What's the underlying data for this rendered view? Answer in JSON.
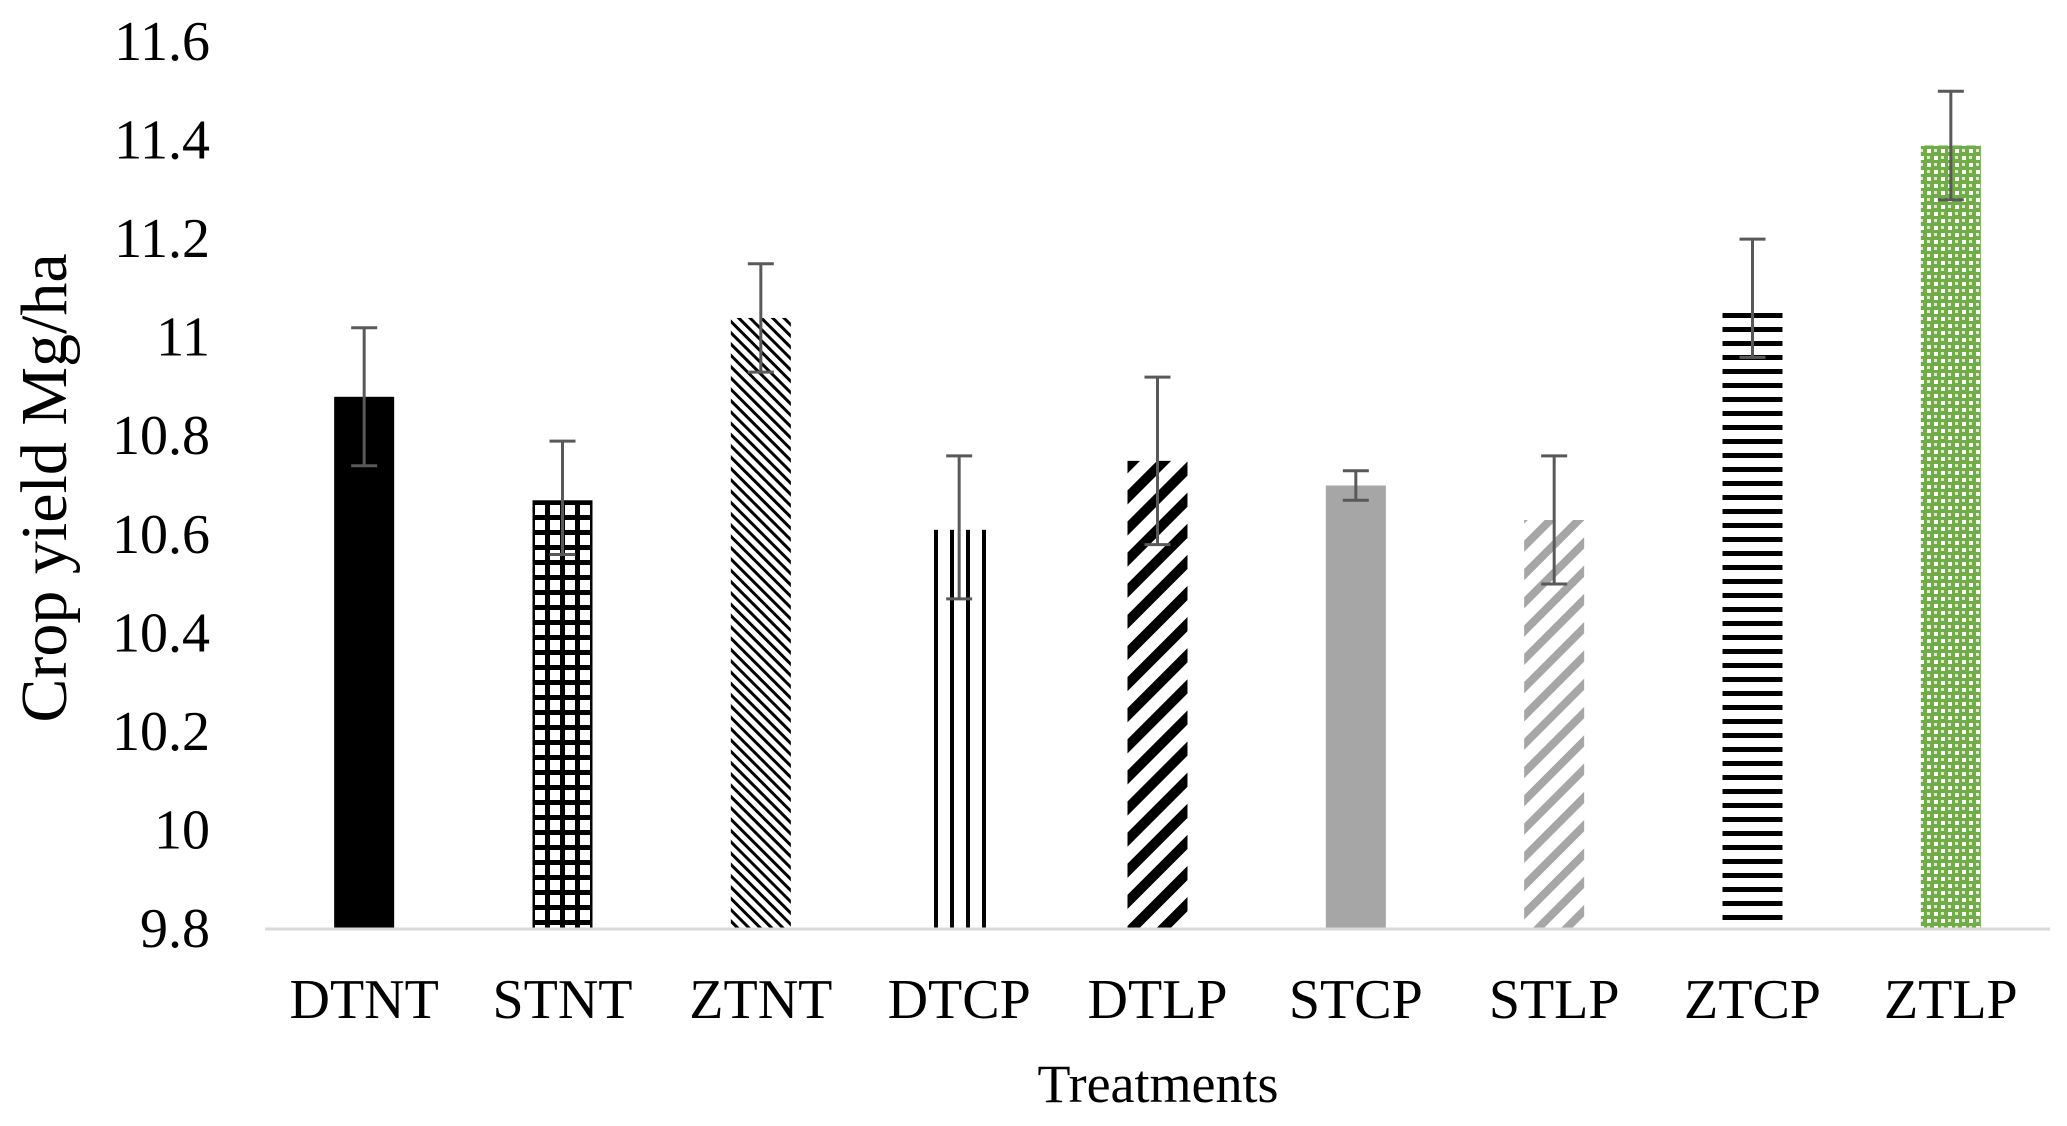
{
  "chart_data": {
    "type": "bar",
    "title": "",
    "xlabel": "Treatments",
    "ylabel": "Crop yield Mg/ha",
    "ylim": [
      9.8,
      11.6
    ],
    "yticks": [
      9.8,
      10,
      10.2,
      10.4,
      10.6,
      10.8,
      11,
      11.2,
      11.4,
      11.6
    ],
    "ytick_labels": [
      "9.8",
      "10",
      "10.2",
      "10.4",
      "10.6",
      "10.8",
      "11",
      "11.2",
      "11.4",
      "11.6"
    ],
    "categories": [
      "DTNT",
      "STNT",
      "ZTNT",
      "DTCP",
      "DTLP",
      "STCP",
      "STLP",
      "ZTCP",
      "ZTLP"
    ],
    "values": [
      10.88,
      10.67,
      11.04,
      10.61,
      10.75,
      10.7,
      10.63,
      11.05,
      11.39
    ],
    "error_high": [
      11.02,
      10.79,
      11.15,
      10.76,
      10.92,
      10.73,
      10.76,
      11.2,
      11.5
    ],
    "error_low": [
      10.74,
      10.56,
      10.93,
      10.47,
      10.58,
      10.67,
      10.5,
      10.96,
      11.28
    ],
    "bar_styles": [
      {
        "pattern": "solid",
        "color": "#000000"
      },
      {
        "pattern": "grid",
        "color": "#000000"
      },
      {
        "pattern": "diagonal-down",
        "color": "#000000"
      },
      {
        "pattern": "vertical",
        "color": "#000000"
      },
      {
        "pattern": "diagonal-up-wide",
        "color": "#000000"
      },
      {
        "pattern": "solid",
        "color": "#a6a6a6"
      },
      {
        "pattern": "diagonal-up-light",
        "color": "#a6a6a6"
      },
      {
        "pattern": "horizontal",
        "color": "#000000"
      },
      {
        "pattern": "checker",
        "color": "#70ad47"
      }
    ],
    "error_bar_color": "#595959",
    "axis_line_color": "#d9d9d9",
    "grid": false,
    "legend": "none"
  }
}
